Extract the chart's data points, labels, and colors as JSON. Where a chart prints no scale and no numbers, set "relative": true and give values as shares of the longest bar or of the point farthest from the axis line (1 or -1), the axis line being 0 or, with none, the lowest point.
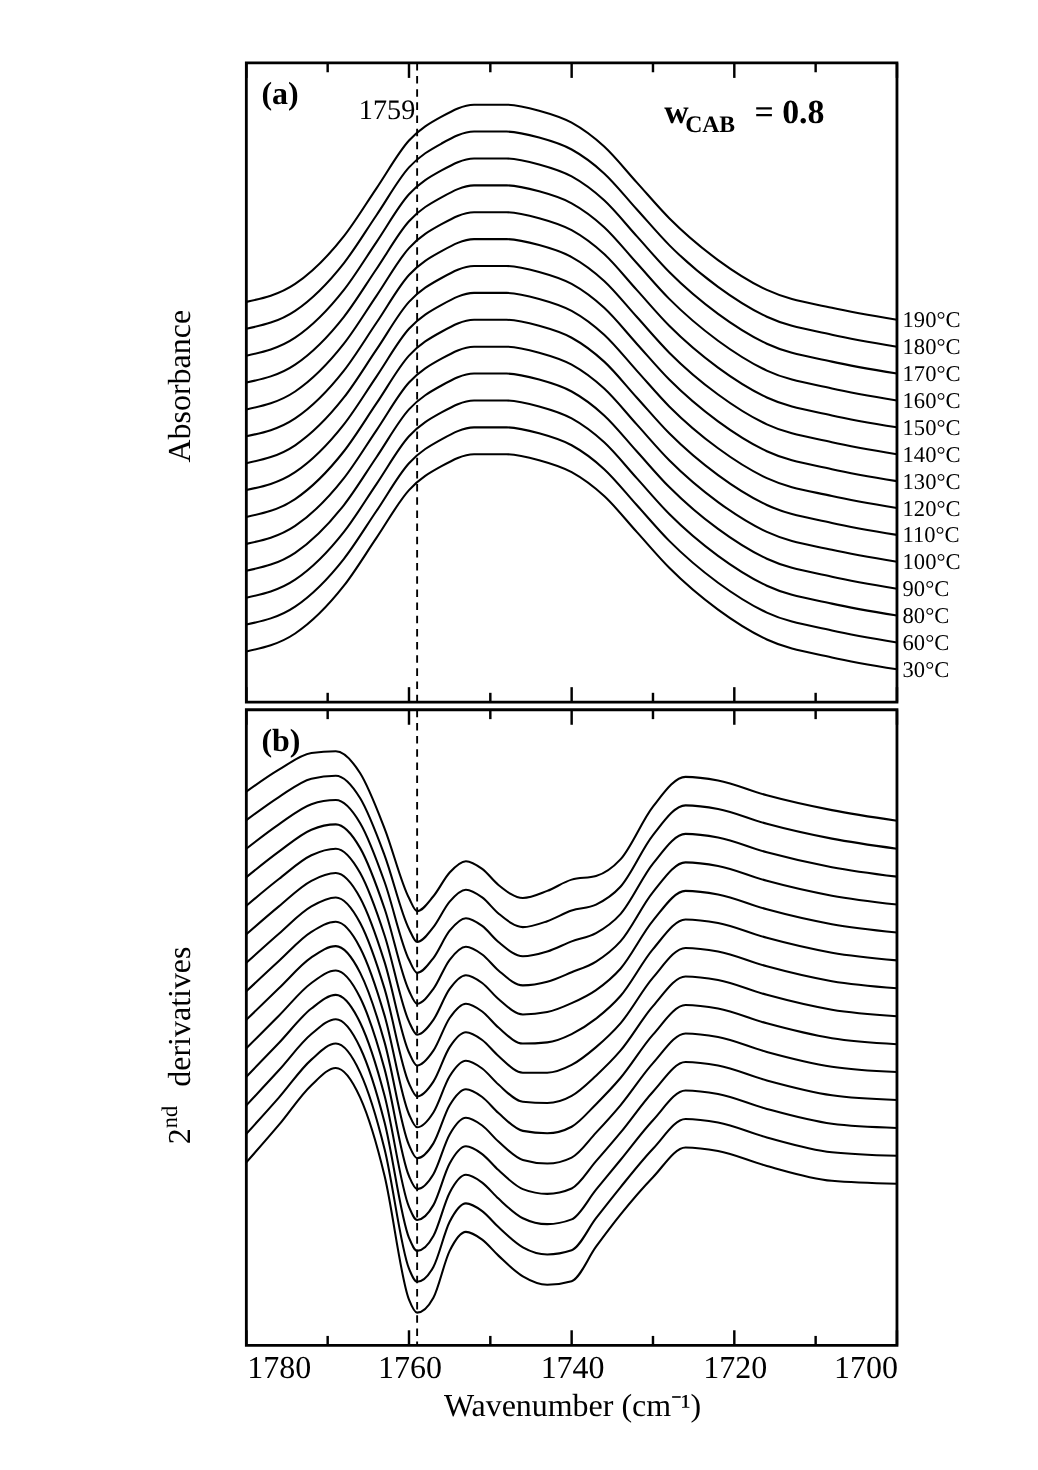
{
  "chart_data": [
    {
      "type": "line",
      "relative": true,
      "ylabel": "Absorbance",
      "tick_labels": false,
      "x": [
        1780,
        1774,
        1768,
        1764,
        1760,
        1756,
        1752,
        1748,
        1744,
        1740,
        1736,
        1732,
        1728,
        1722,
        1716,
        1708,
        1700
      ],
      "xlim": [
        1780,
        1700
      ],
      "xticks": [
        1780,
        {
          "value": 1770,
          "label": null
        },
        1760,
        {
          "value": 1750,
          "label": null
        },
        1740,
        {
          "value": 1730,
          "label": null
        },
        1720,
        {
          "value": 1710,
          "label": null
        },
        1700
      ],
      "ref_lines": [
        {
          "axis": "x",
          "value": 1759,
          "label": "1759",
          "line_style": "dashed"
        }
      ],
      "annotations": [
        "(a)",
        "w$_{CAB}$ = 0.8"
      ],
      "series": [
        {
          "name": "190°C",
          "color": "#000000",
          "values": [
            0.67,
            0.7,
            0.78,
            0.86,
            0.94,
            0.98,
            1.0,
            1.0,
            0.99,
            0.97,
            0.93,
            0.87,
            0.81,
            0.74,
            0.69,
            0.66,
            0.64
          ]
        },
        {
          "name": "180°C",
          "color": "#000000",
          "values": [
            0.625,
            0.655,
            0.735,
            0.815,
            0.895,
            0.935,
            0.955,
            0.955,
            0.945,
            0.925,
            0.885,
            0.825,
            0.765,
            0.695,
            0.645,
            0.615,
            0.595
          ]
        },
        {
          "name": "170°C",
          "color": "#000000",
          "values": [
            0.58,
            0.61,
            0.69,
            0.77,
            0.85,
            0.89,
            0.91,
            0.91,
            0.9,
            0.88,
            0.84,
            0.78,
            0.72,
            0.65,
            0.6,
            0.57,
            0.55
          ]
        },
        {
          "name": "160°C",
          "color": "#000000",
          "values": [
            0.535,
            0.565,
            0.645,
            0.725,
            0.805,
            0.845,
            0.865,
            0.865,
            0.855,
            0.835,
            0.795,
            0.735,
            0.675,
            0.605,
            0.555,
            0.525,
            0.505
          ]
        },
        {
          "name": "150°C",
          "color": "#000000",
          "values": [
            0.49,
            0.52,
            0.6,
            0.68,
            0.76,
            0.8,
            0.82,
            0.82,
            0.81,
            0.79,
            0.75,
            0.69,
            0.63,
            0.56,
            0.51,
            0.48,
            0.46
          ]
        },
        {
          "name": "140°C",
          "color": "#000000",
          "values": [
            0.445,
            0.475,
            0.555,
            0.635,
            0.715,
            0.755,
            0.775,
            0.775,
            0.765,
            0.745,
            0.705,
            0.645,
            0.585,
            0.515,
            0.465,
            0.435,
            0.415
          ]
        },
        {
          "name": "130°C",
          "color": "#000000",
          "values": [
            0.4,
            0.43,
            0.51,
            0.59,
            0.67,
            0.71,
            0.73,
            0.73,
            0.72,
            0.7,
            0.66,
            0.6,
            0.54,
            0.47,
            0.42,
            0.39,
            0.37
          ]
        },
        {
          "name": "120°C",
          "color": "#000000",
          "values": [
            0.355,
            0.385,
            0.465,
            0.545,
            0.625,
            0.665,
            0.685,
            0.685,
            0.675,
            0.655,
            0.615,
            0.555,
            0.495,
            0.425,
            0.375,
            0.345,
            0.325
          ]
        },
        {
          "name": "110°C",
          "color": "#000000",
          "values": [
            0.31,
            0.34,
            0.42,
            0.5,
            0.58,
            0.62,
            0.64,
            0.64,
            0.63,
            0.61,
            0.57,
            0.51,
            0.45,
            0.38,
            0.33,
            0.3,
            0.28
          ]
        },
        {
          "name": "100°C",
          "color": "#000000",
          "values": [
            0.265,
            0.295,
            0.375,
            0.455,
            0.535,
            0.575,
            0.595,
            0.595,
            0.585,
            0.565,
            0.525,
            0.465,
            0.405,
            0.335,
            0.285,
            0.255,
            0.235
          ]
        },
        {
          "name": "90°C",
          "color": "#000000",
          "values": [
            0.22,
            0.25,
            0.33,
            0.41,
            0.49,
            0.53,
            0.55,
            0.55,
            0.54,
            0.52,
            0.48,
            0.42,
            0.36,
            0.29,
            0.24,
            0.21,
            0.19
          ]
        },
        {
          "name": "80°C",
          "color": "#000000",
          "values": [
            0.175,
            0.205,
            0.285,
            0.365,
            0.445,
            0.485,
            0.505,
            0.505,
            0.495,
            0.475,
            0.435,
            0.375,
            0.315,
            0.245,
            0.195,
            0.165,
            0.145
          ]
        },
        {
          "name": "60°C",
          "color": "#000000",
          "values": [
            0.13,
            0.16,
            0.24,
            0.32,
            0.4,
            0.44,
            0.46,
            0.46,
            0.45,
            0.43,
            0.39,
            0.33,
            0.27,
            0.2,
            0.15,
            0.12,
            0.1
          ]
        },
        {
          "name": "30°C",
          "color": "#000000",
          "values": [
            0.085,
            0.115,
            0.195,
            0.275,
            0.355,
            0.395,
            0.415,
            0.415,
            0.405,
            0.385,
            0.345,
            0.285,
            0.225,
            0.155,
            0.105,
            0.075,
            0.055
          ]
        }
      ]
    },
    {
      "type": "line",
      "relative": true,
      "ylabel": "2$^{nd}$ derivatives",
      "xlabel": "Wavenumber (cm⁻¹)",
      "tick_labels": "x",
      "x": [
        1780,
        1776,
        1772,
        1769,
        1766,
        1763,
        1760,
        1759,
        1757,
        1755,
        1753,
        1751,
        1749,
        1746,
        1743,
        1740,
        1737,
        1734,
        1730,
        1726,
        1722,
        1716,
        1708,
        1700
      ],
      "xlim": [
        1780,
        1700
      ],
      "xticks": [
        1780,
        {
          "value": 1770,
          "label": null
        },
        1760,
        {
          "value": 1750,
          "label": null
        },
        1740,
        {
          "value": 1730,
          "label": null
        },
        1720,
        {
          "value": 1710,
          "label": null
        },
        1700
      ],
      "ref_lines": [
        {
          "axis": "x",
          "value": 1759,
          "line_style": "dashed"
        }
      ],
      "annotations": [
        "(b)"
      ],
      "series": [
        {
          "color": "#000000",
          "values": [
            0.932,
            0.969,
            0.997,
            1.0,
            0.963,
            0.87,
            0.753,
            0.731,
            0.756,
            0.796,
            0.815,
            0.802,
            0.775,
            0.753,
            0.765,
            0.784,
            0.79,
            0.818,
            0.907,
            0.957,
            0.951,
            0.926,
            0.901,
            0.883
          ]
        },
        {
          "color": "#000000",
          "values": [
            0.884,
            0.923,
            0.954,
            0.959,
            0.921,
            0.825,
            0.701,
            0.679,
            0.704,
            0.747,
            0.767,
            0.754,
            0.727,
            0.704,
            0.714,
            0.732,
            0.742,
            0.772,
            0.859,
            0.909,
            0.903,
            0.878,
            0.853,
            0.836
          ]
        },
        {
          "color": "#000000",
          "values": [
            0.836,
            0.877,
            0.911,
            0.918,
            0.879,
            0.78,
            0.649,
            0.627,
            0.652,
            0.698,
            0.719,
            0.706,
            0.679,
            0.655,
            0.663,
            0.68,
            0.694,
            0.726,
            0.811,
            0.861,
            0.855,
            0.83,
            0.805,
            0.789
          ]
        },
        {
          "color": "#000000",
          "values": [
            0.788,
            0.831,
            0.868,
            0.877,
            0.837,
            0.735,
            0.597,
            0.575,
            0.6,
            0.649,
            0.671,
            0.658,
            0.631,
            0.606,
            0.612,
            0.628,
            0.646,
            0.68,
            0.763,
            0.813,
            0.807,
            0.782,
            0.757,
            0.742
          ]
        },
        {
          "color": "#000000",
          "values": [
            0.74,
            0.785,
            0.825,
            0.836,
            0.795,
            0.69,
            0.545,
            0.523,
            0.548,
            0.6,
            0.623,
            0.61,
            0.583,
            0.557,
            0.561,
            0.576,
            0.598,
            0.634,
            0.715,
            0.765,
            0.759,
            0.734,
            0.709,
            0.695
          ]
        },
        {
          "color": "#000000",
          "values": [
            0.692,
            0.739,
            0.782,
            0.795,
            0.753,
            0.645,
            0.493,
            0.471,
            0.496,
            0.551,
            0.575,
            0.562,
            0.535,
            0.508,
            0.51,
            0.524,
            0.55,
            0.588,
            0.667,
            0.717,
            0.711,
            0.686,
            0.661,
            0.648
          ]
        },
        {
          "color": "#000000",
          "values": [
            0.644,
            0.693,
            0.739,
            0.754,
            0.711,
            0.6,
            0.441,
            0.419,
            0.444,
            0.502,
            0.527,
            0.514,
            0.487,
            0.459,
            0.459,
            0.472,
            0.502,
            0.542,
            0.619,
            0.669,
            0.663,
            0.638,
            0.613,
            0.601
          ]
        },
        {
          "color": "#000000",
          "values": [
            0.596,
            0.647,
            0.696,
            0.713,
            0.669,
            0.555,
            0.389,
            0.367,
            0.392,
            0.453,
            0.479,
            0.466,
            0.439,
            0.41,
            0.408,
            0.42,
            0.454,
            0.496,
            0.571,
            0.621,
            0.615,
            0.59,
            0.565,
            0.554
          ]
        },
        {
          "color": "#000000",
          "values": [
            0.548,
            0.601,
            0.653,
            0.672,
            0.627,
            0.51,
            0.337,
            0.315,
            0.34,
            0.404,
            0.431,
            0.418,
            0.391,
            0.361,
            0.357,
            0.368,
            0.406,
            0.45,
            0.523,
            0.573,
            0.567,
            0.542,
            0.517,
            0.507
          ]
        },
        {
          "color": "#000000",
          "values": [
            0.5,
            0.555,
            0.61,
            0.631,
            0.585,
            0.465,
            0.285,
            0.263,
            0.288,
            0.355,
            0.383,
            0.37,
            0.343,
            0.312,
            0.306,
            0.316,
            0.358,
            0.404,
            0.475,
            0.525,
            0.519,
            0.494,
            0.469,
            0.46
          ]
        },
        {
          "color": "#000000",
          "values": [
            0.452,
            0.509,
            0.567,
            0.59,
            0.543,
            0.42,
            0.233,
            0.211,
            0.236,
            0.306,
            0.335,
            0.322,
            0.295,
            0.263,
            0.255,
            0.264,
            0.31,
            0.358,
            0.427,
            0.477,
            0.471,
            0.446,
            0.421,
            0.413
          ]
        },
        {
          "color": "#000000",
          "values": [
            0.404,
            0.463,
            0.524,
            0.549,
            0.501,
            0.375,
            0.181,
            0.159,
            0.184,
            0.257,
            0.287,
            0.274,
            0.247,
            0.214,
            0.204,
            0.212,
            0.262,
            0.312,
            0.379,
            0.429,
            0.423,
            0.398,
            0.373,
            0.366
          ]
        },
        {
          "color": "#000000",
          "values": [
            0.356,
            0.417,
            0.481,
            0.508,
            0.459,
            0.33,
            0.129,
            0.107,
            0.132,
            0.208,
            0.239,
            0.226,
            0.199,
            0.165,
            0.153,
            0.16,
            0.214,
            0.266,
            0.331,
            0.381,
            0.375,
            0.35,
            0.325,
            0.319
          ]
        },
        {
          "color": "#000000",
          "values": [
            0.308,
            0.371,
            0.438,
            0.467,
            0.417,
            0.285,
            0.077,
            0.055,
            0.08,
            0.159,
            0.191,
            0.178,
            0.151,
            0.116,
            0.102,
            0.108,
            0.166,
            0.22,
            0.283,
            0.333,
            0.327,
            0.302,
            0.277,
            0.272
          ]
        }
      ]
    }
  ]
}
